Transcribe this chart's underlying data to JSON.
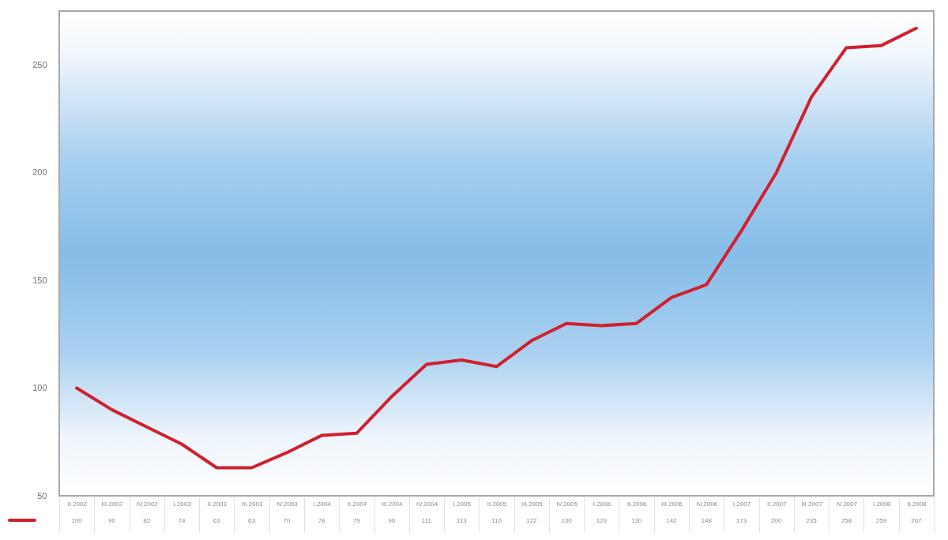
{
  "chart_data": {
    "type": "line",
    "categories": [
      "II.2002",
      "III.2002",
      "IV.2002",
      "I.2003",
      "II.2003",
      "III.2003",
      "IV.2003",
      "I.2004",
      "II.2004",
      "III.2004",
      "IV.2004",
      "I.2005",
      "II.2005",
      "III.2005",
      "IV.2005",
      "I.2006",
      "II.2006",
      "III.2006",
      "IV.2006",
      "I.2007",
      "II.2007",
      "III.2007",
      "IV.2007",
      "I.2008",
      "II.2008"
    ],
    "series": [
      {
        "color": "#d0202e",
        "values": [
          100,
          90,
          82,
          74,
          63,
          63,
          70,
          78,
          79,
          96,
          111,
          113,
          110,
          122,
          130,
          129,
          130,
          142,
          148,
          173,
          200,
          235,
          258,
          259,
          267
        ]
      }
    ],
    "ylim": [
      50,
      275
    ],
    "yticks": [
      50,
      100,
      150,
      200,
      250
    ],
    "data_labels": true
  }
}
